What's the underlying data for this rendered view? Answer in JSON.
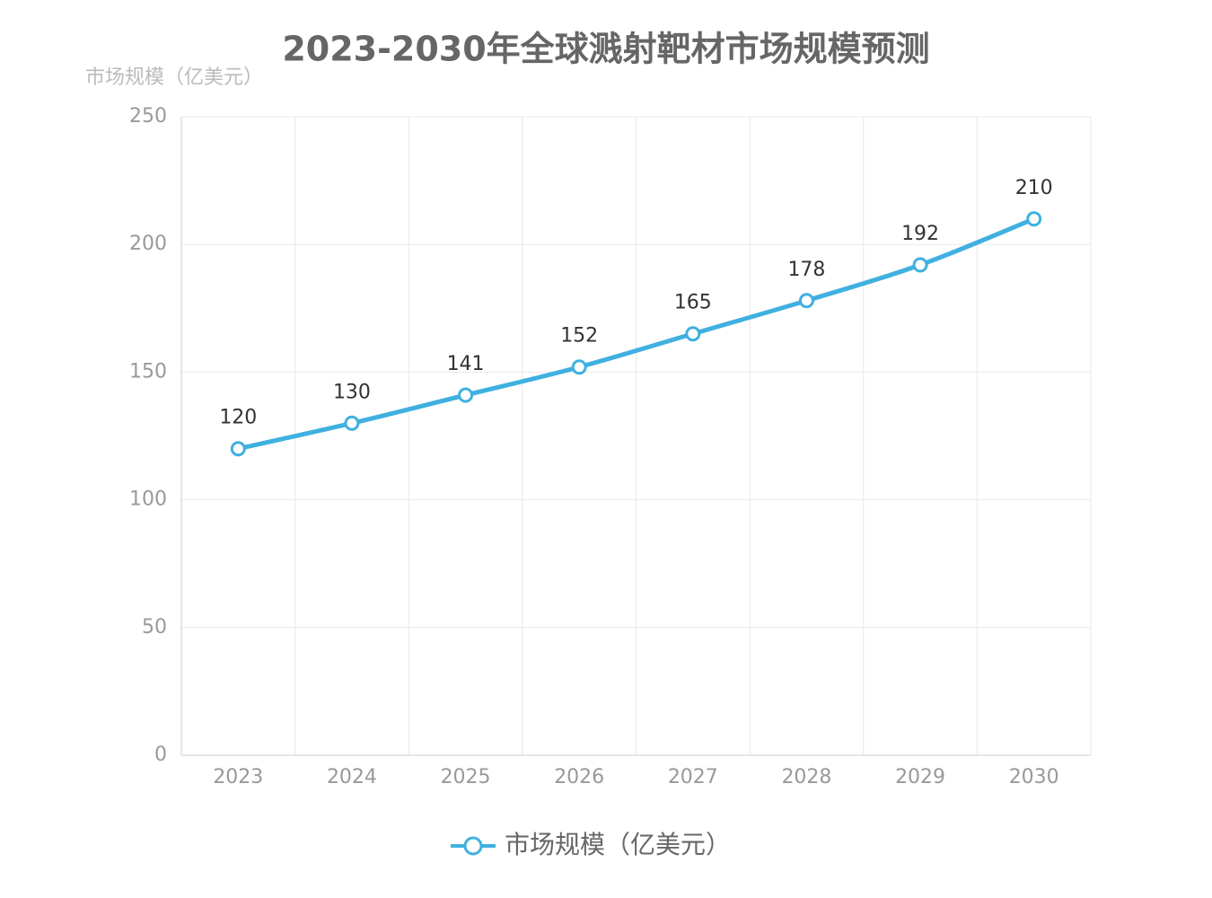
{
  "chart_data": {
    "type": "line",
    "title": "2023-2030年全球溅射靶材市场规模预测",
    "y_axis_label": "市场规模（亿美元）",
    "categories": [
      "2023",
      "2024",
      "2025",
      "2026",
      "2027",
      "2028",
      "2029",
      "2030"
    ],
    "series": [
      {
        "name": "市场规模（亿美元）",
        "color": "#3fb0e0",
        "values": [
          120,
          130,
          141,
          152,
          165,
          178,
          192,
          210
        ]
      }
    ],
    "ylim": [
      0,
      250
    ],
    "yticks": [
      0,
      50,
      100,
      150,
      200,
      250
    ],
    "grid": true,
    "smooth": true,
    "legend": "bottom"
  }
}
